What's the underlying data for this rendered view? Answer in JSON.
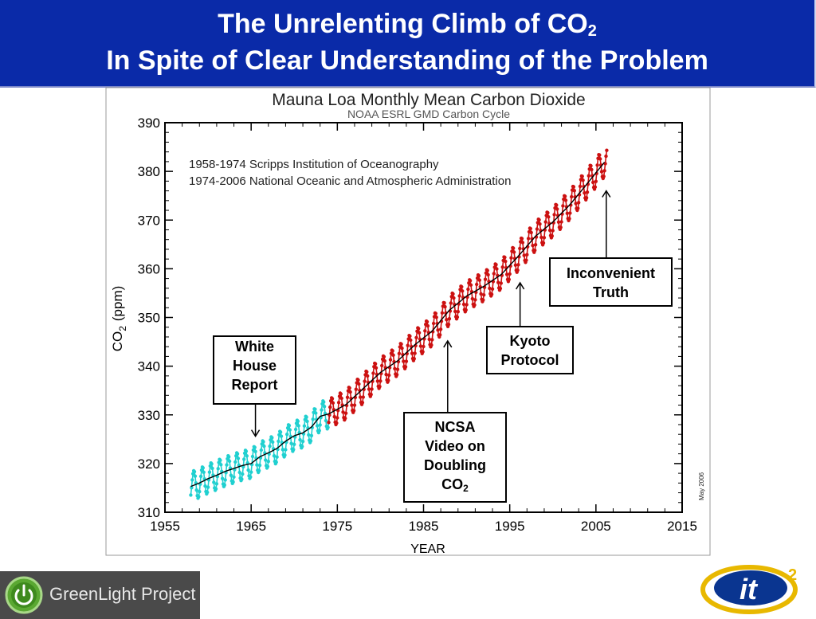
{
  "header": {
    "title_line1": "The Unrelenting Climb of CO",
    "title_line1_sub": "2",
    "title_line2": "In Spite of Clear Understanding of the Problem"
  },
  "colors": {
    "header_bg": "#0a2aa8",
    "scripps_series": "#20d0d0",
    "noaa_series": "#cc1111",
    "trend": "#000000"
  },
  "chart_data": {
    "type": "line",
    "title": "Mauna Loa Monthly Mean Carbon Dioxide",
    "subtitle": "NOAA ESRL GMD Carbon Cycle",
    "xlabel": "YEAR",
    "ylabel": "CO2 (ppm)",
    "ylabel_main": "CO",
    "ylabel_sub": "2",
    "ylabel_unit": "(ppm)",
    "xlim": [
      1955,
      2015
    ],
    "ylim": [
      310,
      390
    ],
    "xticks": [
      1955,
      1965,
      1975,
      1985,
      1995,
      2005,
      2015
    ],
    "yticks": [
      310,
      320,
      330,
      340,
      350,
      360,
      370,
      380,
      390
    ],
    "grid": false,
    "side_note": "May 2006",
    "source_notes": [
      "1958-1974 Scripps Institution of Oceanography",
      "1974-2006 National Oceanic and Atmospheric Administration"
    ],
    "series": [
      {
        "name": "1958-1974 Scripps Institution of Oceanography",
        "x": [
          1958,
          1959,
          1960,
          1961,
          1962,
          1963,
          1964,
          1965,
          1966,
          1967,
          1968,
          1969,
          1970,
          1971,
          1972,
          1973,
          1974
        ],
        "y": [
          315.3,
          316.0,
          316.9,
          317.6,
          318.4,
          319.0,
          319.6,
          320.0,
          321.4,
          322.2,
          323.1,
          324.6,
          325.7,
          326.3,
          327.5,
          329.7,
          330.2
        ]
      },
      {
        "name": "1974-2006 National Oceanic and Atmospheric Administration",
        "x": [
          1974,
          1976,
          1978,
          1980,
          1982,
          1984,
          1986,
          1988,
          1990,
          1992,
          1994,
          1996,
          1998,
          2000,
          2002,
          2004,
          2006
        ],
        "y": [
          330.2,
          332.1,
          335.4,
          338.7,
          341.1,
          344.4,
          347.2,
          351.5,
          354.4,
          356.4,
          358.8,
          362.6,
          366.7,
          369.6,
          373.2,
          377.5,
          381.9
        ]
      }
    ],
    "seasonal_amplitude_ppm": 6
  },
  "annotations": [
    {
      "id": "white-house",
      "lines": [
        "White",
        "House",
        "Report"
      ],
      "year": 1965.5
    },
    {
      "id": "ncsa",
      "lines": [
        "NCSA",
        "Video on",
        "Doubling",
        "CO"
      ],
      "sub": "2",
      "year": 1987.8
    },
    {
      "id": "kyoto",
      "lines": [
        "Kyoto",
        "Protocol"
      ],
      "year": 1996.2
    },
    {
      "id": "inconvenient",
      "lines": [
        "Inconvenient",
        "Truth"
      ],
      "year": 2006.2
    }
  ],
  "footer": {
    "greenlight_text": "GreenLight Project",
    "it2_text": "it",
    "it2_sup": "2"
  }
}
